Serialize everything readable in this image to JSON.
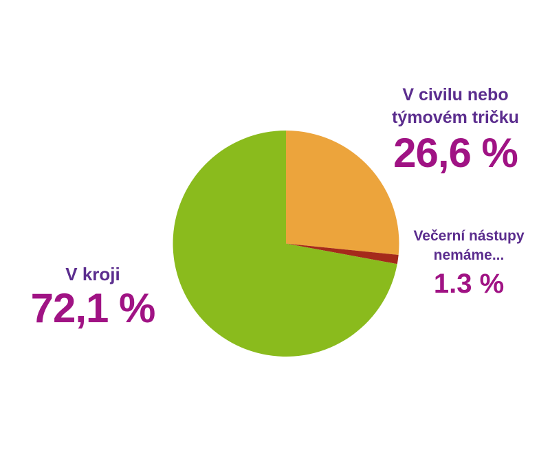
{
  "chart_data": {
    "type": "pie",
    "title": "",
    "legend": "none",
    "start_angle_deg": 0,
    "direction": "clockwise",
    "background_color": "#FFFFFF",
    "label_text_color": "#5B2D8E",
    "value_text_color": "#A01384",
    "slices": [
      {
        "label": "V civilu nebo týmovém tričku",
        "label_lines": [
          "V civilu nebo",
          "týmovém tričku"
        ],
        "value": 26.6,
        "value_label": "26,6 %",
        "color": "#ECA43C"
      },
      {
        "label": "Večerní nástupy nemáme...",
        "label_lines": [
          "Večerní nástupy",
          "nemáme..."
        ],
        "value": 1.3,
        "value_label": "1.3 %",
        "color": "#A52A1B"
      },
      {
        "label": "V kroji",
        "label_lines": [
          "V kroji"
        ],
        "value": 72.1,
        "value_label": "72,1 %",
        "color": "#8ABB1D"
      }
    ]
  }
}
